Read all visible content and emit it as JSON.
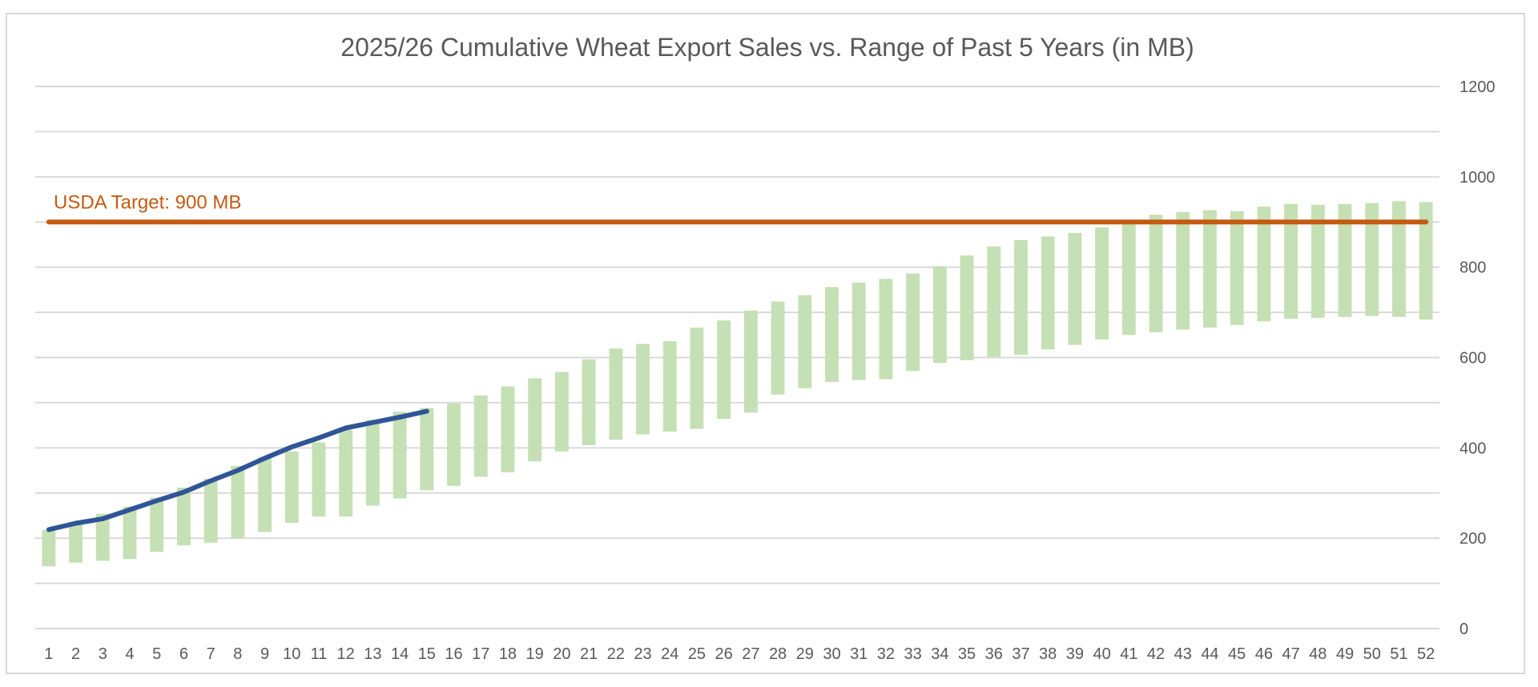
{
  "chart_data": {
    "type": "bar",
    "title": "2025/26 Cumulative Wheat Export Sales vs. Range of Past 5 Years (in MB)",
    "xlabel": "",
    "ylabel": "",
    "ylim": [
      0,
      1200
    ],
    "y_axis_position": "right",
    "y_ticks": [
      "0",
      "200",
      "400",
      "600",
      "800",
      "1000",
      "1200"
    ],
    "y_tick_values": [
      0,
      200,
      400,
      600,
      800,
      1000,
      1200
    ],
    "gridline_step": 100,
    "grid": true,
    "legend": "none",
    "categories": [
      "1",
      "2",
      "3",
      "4",
      "5",
      "6",
      "7",
      "8",
      "9",
      "10",
      "11",
      "12",
      "13",
      "14",
      "15",
      "16",
      "17",
      "18",
      "19",
      "20",
      "21",
      "22",
      "23",
      "24",
      "25",
      "26",
      "27",
      "28",
      "29",
      "30",
      "31",
      "32",
      "33",
      "34",
      "35",
      "36",
      "37",
      "38",
      "39",
      "40",
      "41",
      "42",
      "43",
      "44",
      "45",
      "46",
      "47",
      "48",
      "49",
      "50",
      "51",
      "52"
    ],
    "range_low": [
      138,
      146,
      150,
      154,
      170,
      184,
      190,
      200,
      214,
      234,
      248,
      248,
      272,
      288,
      306,
      316,
      336,
      346,
      370,
      392,
      406,
      418,
      430,
      436,
      442,
      464,
      478,
      518,
      532,
      546,
      550,
      552,
      570,
      588,
      594,
      602,
      606,
      618,
      628,
      640,
      650,
      656,
      662,
      666,
      672,
      680,
      686,
      688,
      690,
      692,
      690,
      684
    ],
    "range_high": [
      218,
      236,
      254,
      270,
      290,
      312,
      332,
      360,
      380,
      392,
      412,
      440,
      462,
      480,
      488,
      498,
      516,
      536,
      554,
      568,
      596,
      620,
      630,
      636,
      666,
      682,
      704,
      724,
      738,
      756,
      766,
      774,
      786,
      802,
      826,
      846,
      860,
      868,
      876,
      888,
      900,
      916,
      922,
      926,
      924,
      934,
      940,
      938,
      940,
      942,
      946,
      944
    ],
    "current_series": {
      "x": [
        1,
        2,
        3,
        4,
        5,
        6,
        7,
        8,
        9,
        10,
        11,
        12,
        13,
        14,
        15
      ],
      "values": [
        219,
        233,
        243,
        263,
        283,
        302,
        327,
        350,
        377,
        402,
        422,
        444,
        456,
        468,
        481
      ]
    },
    "target_line": {
      "label": "USDA Target: 900 MB",
      "value": 900
    },
    "colors": {
      "range_bars": "#c5e0b4",
      "current_line": "#2f5597",
      "target_line": "#c55a11",
      "grid": "#d9d9d9",
      "text": "#595959"
    }
  }
}
